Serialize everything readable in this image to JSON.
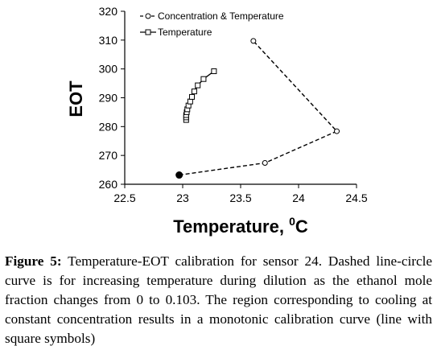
{
  "chart_data": {
    "type": "line",
    "title": "",
    "xlabel": "Temperature, ",
    "xlabel_sup": "0",
    "xlabel_unit": "C",
    "ylabel": "EOT",
    "xlim": [
      22.5,
      24.5
    ],
    "ylim": [
      260,
      320
    ],
    "xticks": [
      "22.5",
      "23",
      "23.5",
      "24",
      "24.5"
    ],
    "yticks": [
      "260",
      "270",
      "280",
      "290",
      "300",
      "310",
      "320"
    ],
    "grid": false,
    "legend_placement": "top-left",
    "series": [
      {
        "name": "Concentration & Temperature",
        "style": "dashed",
        "marker": "circle",
        "x": [
          22.97,
          23.71,
          24.33,
          23.61
        ],
        "y": [
          263.2,
          267.4,
          278.4,
          309.7
        ],
        "filled_first_point": true
      },
      {
        "name": "Temperature",
        "style": "solid",
        "marker": "square",
        "x": [
          23.03,
          23.03,
          23.03,
          23.035,
          23.04,
          23.05,
          23.065,
          23.08,
          23.1,
          23.13,
          23.18,
          23.27
        ],
        "y": [
          282.3,
          283.2,
          284.0,
          285.0,
          286.0,
          287.3,
          288.7,
          290.3,
          292.2,
          294.3,
          296.5,
          299.2
        ]
      }
    ],
    "colors": {
      "line": "#000000",
      "marker_fill": "#ffffff",
      "filled_marker": "#000000"
    }
  },
  "caption": {
    "label": "Figure 5:",
    "text": " Temperature-EOT calibration for sensor 24. Dashed line-circle curve is for increasing temperature during dilution as the ethanol mole fraction changes from 0 to 0.103. The region corresponding to cooling at constant concentration results in a monotonic calibration curve (line with square symbols)"
  }
}
